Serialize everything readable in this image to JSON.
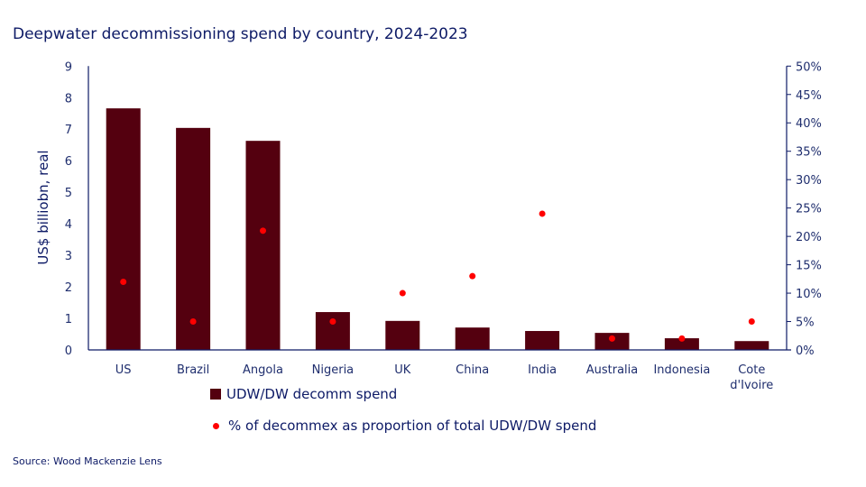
{
  "chart_data": {
    "type": "bar",
    "title": "Deepwater decommissioning spend by country, 2024-2023",
    "ylabel": "US$ billiobn, real",
    "y2label": "",
    "categories": [
      "US",
      "Brazil",
      "Angola",
      "Nigeria",
      "UK",
      "China",
      "India",
      "Australia",
      "Indonesia",
      "Cote d'Ivoire"
    ],
    "series": [
      {
        "name": "UDW/DW decomm spend",
        "type": "bar",
        "axis": "left",
        "color": "#54000f",
        "values": [
          7.66,
          7.04,
          6.63,
          1.2,
          0.92,
          0.71,
          0.6,
          0.54,
          0.37,
          0.28
        ]
      },
      {
        "name": "% of decommex as proportion of total UDW/DW spend",
        "type": "scatter",
        "axis": "right",
        "color": "#ff0000",
        "values": [
          12,
          5,
          21,
          5,
          10,
          13,
          24,
          2,
          2,
          5
        ]
      }
    ],
    "ylim": [
      0,
      9
    ],
    "yticks": [
      "0",
      "1",
      "2",
      "3",
      "4",
      "5",
      "6",
      "7",
      "8",
      "9"
    ],
    "y2lim": [
      0,
      50
    ],
    "y2ticks": [
      "0%",
      "5%",
      "10%",
      "15%",
      "20%",
      "25%",
      "30%",
      "35%",
      "40%",
      "45%",
      "50%"
    ],
    "grid": false,
    "legend_position": "bottom"
  },
  "source": "Source: Wood Mackenzie Lens"
}
